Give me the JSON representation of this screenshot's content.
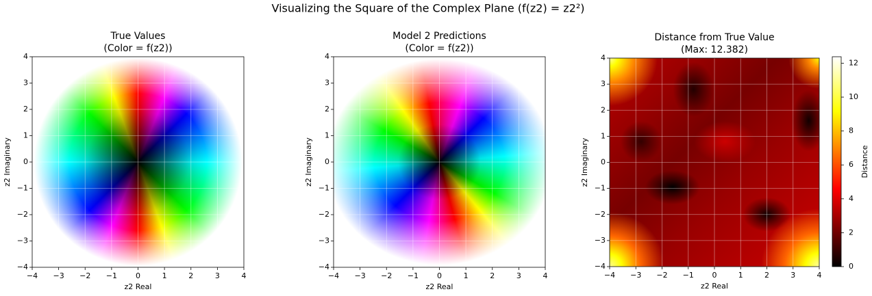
{
  "title": "Visualizing the Square of the Complex Plane (f(z2) = z2²)",
  "chart_data": [
    {
      "type": "image",
      "title": "True Values",
      "subtitle": "(Color = f(z2))",
      "xlabel": "z2 Real",
      "ylabel": "z2 Imaginary",
      "xlim": [
        -4,
        4
      ],
      "ylim": [
        -4,
        4
      ],
      "xticks": [
        {
          "value": -4,
          "label": "−4"
        },
        {
          "value": -3,
          "label": "−3"
        },
        {
          "value": -2,
          "label": "−2"
        },
        {
          "value": -1,
          "label": "−1"
        },
        0,
        1,
        2,
        3,
        4
      ],
      "yticks": [
        {
          "value": -4,
          "label": "−4"
        },
        {
          "value": -3,
          "label": "−3"
        },
        {
          "value": -2,
          "label": "−2"
        },
        {
          "value": -1,
          "label": "−1"
        },
        0,
        1,
        2,
        3,
        4
      ],
      "grid": true
    },
    {
      "type": "image",
      "title": "Model 2 Predictions",
      "subtitle": "(Color = f(z2))",
      "xlabel": "z2 Real",
      "ylabel": "z2 Imaginary",
      "xlim": [
        -4,
        4
      ],
      "ylim": [
        -4,
        4
      ],
      "xticks": [
        {
          "value": -4,
          "label": "−4"
        },
        {
          "value": -3,
          "label": "−3"
        },
        {
          "value": -2,
          "label": "−2"
        },
        {
          "value": -1,
          "label": "−1"
        },
        0,
        1,
        2,
        3,
        4
      ],
      "yticks": [
        {
          "value": -4,
          "label": "−4"
        },
        {
          "value": -3,
          "label": "−3"
        },
        {
          "value": -2,
          "label": "−2"
        },
        {
          "value": -1,
          "label": "−1"
        },
        0,
        1,
        2,
        3,
        4
      ],
      "grid": true
    },
    {
      "type": "heatmap",
      "title": "Distance from True Value",
      "subtitle": "(Max: 12.382)",
      "xlabel": "z2 Real",
      "ylabel": "z2 Imaginary",
      "xlim": [
        -4,
        4
      ],
      "ylim": [
        -4,
        4
      ],
      "xticks": [
        {
          "value": -4,
          "label": "−4"
        },
        {
          "value": -3,
          "label": "−3"
        },
        {
          "value": -2,
          "label": "−2"
        },
        {
          "value": -1,
          "label": "−1"
        },
        0,
        1,
        2,
        3,
        4
      ],
      "yticks": [
        {
          "value": -4,
          "label": "−4"
        },
        {
          "value": -3,
          "label": "−3"
        },
        {
          "value": -2,
          "label": "−2"
        },
        {
          "value": -1,
          "label": "−1"
        },
        0,
        1,
        2,
        3,
        4
      ],
      "grid": true,
      "colorbar_label": "Distance",
      "clim": [
        0,
        12.382
      ],
      "cticks": [
        0,
        2,
        4,
        6,
        8,
        10,
        12
      ]
    }
  ]
}
